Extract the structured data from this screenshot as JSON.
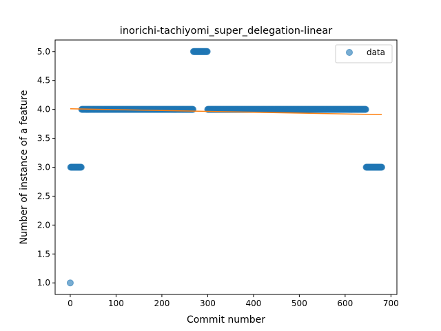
{
  "chart_data": {
    "type": "scatter",
    "title": "inorichi-tachiyomi_super_delegation-linear",
    "xlabel": "Commit number",
    "ylabel": "Number of instance of a feature",
    "xlim": [
      -33,
      713
    ],
    "ylim": [
      0.8,
      5.2
    ],
    "xticks": [
      0,
      100,
      200,
      300,
      400,
      500,
      600,
      700
    ],
    "yticks": [
      1.0,
      1.5,
      2.0,
      2.5,
      3.0,
      3.5,
      4.0,
      4.5,
      5.0
    ],
    "xtick_labels": [
      "0",
      "100",
      "200",
      "300",
      "400",
      "500",
      "600",
      "700"
    ],
    "ytick_labels": [
      "1.0",
      "1.5",
      "2.0",
      "2.5",
      "3.0",
      "3.5",
      "4.0",
      "4.5",
      "5.0"
    ],
    "legend": {
      "position": "top-right",
      "entries": [
        "data"
      ]
    },
    "colors": {
      "points": "#1f77b4",
      "fit_line": "#ff7f0e"
    },
    "series": [
      {
        "name": "data",
        "kind": "scatter",
        "segments": [
          {
            "x_start": 0,
            "x_end": 0,
            "y": 1
          },
          {
            "x_start": 1,
            "x_end": 24,
            "y": 3
          },
          {
            "x_start": 25,
            "x_end": 268,
            "y": 4
          },
          {
            "x_start": 269,
            "x_end": 299,
            "y": 5
          },
          {
            "x_start": 300,
            "x_end": 645,
            "y": 4
          },
          {
            "x_start": 646,
            "x_end": 680,
            "y": 3
          }
        ]
      },
      {
        "kind": "line",
        "x": [
          0,
          680
        ],
        "y": [
          4.01,
          3.91
        ]
      }
    ],
    "grid": false
  }
}
